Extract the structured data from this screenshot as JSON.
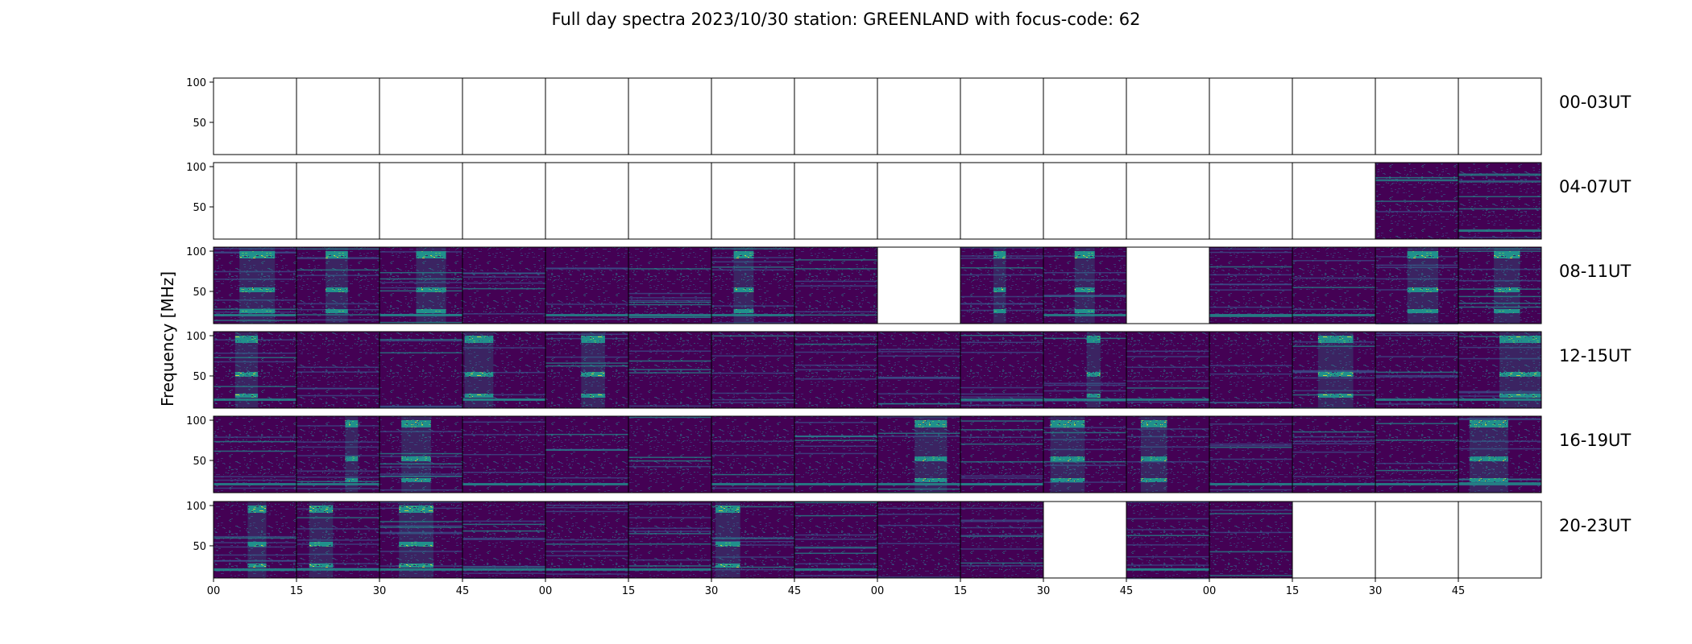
{
  "chart_data": {
    "type": "heatmap",
    "title": "Full day spectra 2023/10/30 station: GREENLAND with focus-code: 62",
    "ylabel": "Frequency [MHz]",
    "ylim": [
      10,
      105
    ],
    "y_ticks": [
      50,
      100
    ],
    "x_ticks": [
      "00",
      "15",
      "30",
      "45",
      "00",
      "15",
      "30",
      "45",
      "00",
      "15",
      "30",
      "45",
      "00",
      "15",
      "30",
      "45"
    ],
    "rows": [
      {
        "label": "00-03UT",
        "panels": [
          "empty",
          "empty",
          "empty",
          "empty",
          "empty",
          "empty",
          "empty",
          "empty",
          "empty",
          "empty",
          "empty",
          "empty",
          "empty",
          "empty",
          "empty",
          "empty"
        ]
      },
      {
        "label": "04-07UT",
        "panels": [
          "empty",
          "empty",
          "empty",
          "empty",
          "empty",
          "empty",
          "empty",
          "empty",
          "empty",
          "empty",
          "empty",
          "empty",
          "empty",
          "empty",
          "data",
          "data"
        ]
      },
      {
        "label": "08-11UT",
        "panels": [
          "data",
          "data",
          "data",
          "data",
          "data",
          "data",
          "data",
          "data",
          "empty",
          "data",
          "data",
          "empty",
          "data",
          "data",
          "data",
          "data"
        ]
      },
      {
        "label": "12-15UT",
        "panels": [
          "data",
          "data",
          "data",
          "data",
          "data",
          "data",
          "data",
          "data",
          "data",
          "data",
          "data",
          "data",
          "data",
          "data",
          "data",
          "data"
        ]
      },
      {
        "label": "16-19UT",
        "panels": [
          "data",
          "data",
          "data",
          "data",
          "data",
          "data",
          "data",
          "data",
          "data",
          "data",
          "data",
          "data",
          "data",
          "data",
          "data",
          "data"
        ]
      },
      {
        "label": "20-23UT",
        "panels": [
          "data",
          "data",
          "data",
          "data",
          "data",
          "data",
          "data",
          "data",
          "data",
          "data",
          "empty",
          "data",
          "data",
          "empty",
          "empty",
          "empty"
        ]
      }
    ],
    "colormap": [
      "#440154",
      "#3b528b",
      "#21918c",
      "#5ec962",
      "#fde725"
    ],
    "grid": false
  }
}
